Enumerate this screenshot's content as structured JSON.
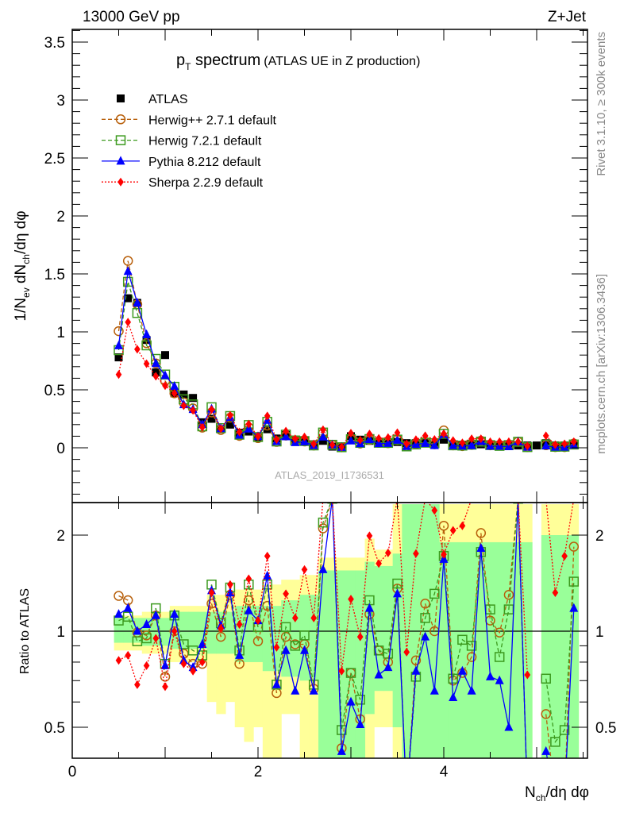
{
  "chart_data": {
    "type": "line",
    "header_left": "13000 GeV pp",
    "header_right": "Z+Jet",
    "title": {
      "p": "p",
      "sub": "T",
      "rest": " spectrum",
      "subtitle": "(ATLAS UE in Z production)"
    },
    "ylabel": {
      "a": "1/N",
      "a_sub": "ev",
      "b": " dN",
      "b_sub": "ch",
      "c": "/dη dφ"
    },
    "ratio_ylabel": "Ratio to ATLAS",
    "xlabel": {
      "a": "N",
      "a_sub": "ch",
      "b": "/dη dφ"
    },
    "side_text_top": "Rivet 3.1.10, ≥ 300k events",
    "side_text_bottom": "mcplots.cern.ch [arXiv:1306.3436]",
    "watermark": "ATLAS_2019_I1736531",
    "xlim": [
      0,
      5.55
    ],
    "ylim": [
      -0.47,
      3.61
    ],
    "ratio_ylim": [
      0.4,
      2.49
    ],
    "ratio_scale": "log",
    "x_ticks": [
      "0",
      "2",
      "4"
    ],
    "y_ticks": [
      "0",
      "0.5",
      "1",
      "1.5",
      "2",
      "2.5",
      "3",
      "3.5"
    ],
    "ratio_ticks": [
      "0.5",
      "1",
      "2"
    ],
    "legend_position": "top-left",
    "x": [
      0.5,
      0.6,
      0.7,
      0.8,
      0.9,
      1.0,
      1.1,
      1.2,
      1.3,
      1.4,
      1.5,
      1.6,
      1.7,
      1.8,
      1.9,
      2.0,
      2.1,
      2.2,
      2.3,
      2.4,
      2.5,
      2.6,
      2.7,
      2.8,
      2.9,
      3.0,
      3.1,
      3.2,
      3.3,
      3.4,
      3.5,
      3.6,
      3.7,
      3.8,
      3.9,
      4.0,
      4.1,
      4.2,
      4.3,
      4.4,
      4.5,
      4.6,
      4.7,
      4.8,
      4.9,
      5.0,
      5.1,
      5.2,
      5.3,
      5.4
    ],
    "data": {
      "name": "ATLAS",
      "color": "#000000",
      "values": [
        0.78,
        1.29,
        1.25,
        0.93,
        0.65,
        0.8,
        0.47,
        0.46,
        0.43,
        0.22,
        0.25,
        0.16,
        0.2,
        0.13,
        0.14,
        0.09,
        0.16,
        0.08,
        0.11,
        0.07,
        0.06,
        0.03,
        0.06,
        0.01,
        0.01,
        0.1,
        0.07,
        0.06,
        0.05,
        0.05,
        0.05,
        0.04,
        0.04,
        0.04,
        0.03,
        0.07,
        0.03,
        0.02,
        0.03,
        0.03,
        0.02,
        0.02,
        0.02,
        0.02,
        0.02,
        0.02,
        0.04,
        0.02,
        0.02,
        0.02
      ]
    },
    "bands": {
      "yellow_color": "#ffff99",
      "green_color": "#99ff99",
      "yellow_lo": [
        0.87,
        0.87,
        0.87,
        0.85,
        0.85,
        0.85,
        0.8,
        0.8,
        0.8,
        0.8,
        0.6,
        0.55,
        0.6,
        0.5,
        0.45,
        0.5,
        0.35,
        0.35,
        0.55,
        0.55,
        0.35,
        0.35,
        0.3,
        0.3,
        0.3,
        0.3,
        0.3,
        0.4,
        0.5,
        0.5,
        0.3,
        0.3,
        0.3,
        0.3,
        0.3,
        0.3,
        0.3,
        0.3,
        0.3,
        0.3,
        0.3,
        0.3,
        0.3,
        0.3,
        0.3,
        null,
        0.3,
        0.3,
        0.3,
        0.3
      ],
      "yellow_hi": [
        1.12,
        1.12,
        1.12,
        1.15,
        1.15,
        1.15,
        1.2,
        1.2,
        1.2,
        1.2,
        1.3,
        1.3,
        1.3,
        1.35,
        1.35,
        1.35,
        1.4,
        1.4,
        1.45,
        1.45,
        1.5,
        1.5,
        1.7,
        1.7,
        1.7,
        1.7,
        1.7,
        1.95,
        1.8,
        1.8,
        2.5,
        2.5,
        2.5,
        2.5,
        2.5,
        2.5,
        2.5,
        2.5,
        2.5,
        2.5,
        2.5,
        2.5,
        2.5,
        2.5,
        2.5,
        null,
        2.5,
        2.5,
        2.5,
        2.5
      ],
      "green_lo": [
        0.92,
        0.92,
        0.92,
        0.9,
        0.9,
        0.9,
        0.88,
        0.88,
        0.88,
        0.88,
        0.85,
        0.85,
        0.85,
        0.8,
        0.8,
        0.8,
        0.75,
        0.75,
        0.72,
        0.72,
        0.7,
        0.7,
        0.3,
        0.3,
        0.3,
        0.3,
        0.3,
        0.55,
        0.65,
        0.65,
        0.5,
        0.3,
        0.3,
        0.3,
        0.3,
        0.3,
        0.3,
        0.3,
        0.3,
        0.3,
        0.3,
        0.3,
        0.3,
        0.3,
        0.3,
        null,
        0.3,
        0.3,
        0.3,
        0.3
      ],
      "green_hi": [
        1.1,
        1.1,
        1.1,
        1.1,
        1.1,
        1.1,
        1.15,
        1.15,
        1.15,
        1.15,
        1.15,
        1.15,
        1.15,
        1.2,
        1.2,
        1.2,
        1.2,
        1.2,
        1.25,
        1.25,
        1.3,
        1.3,
        1.55,
        1.55,
        1.55,
        1.55,
        1.55,
        1.65,
        1.6,
        1.6,
        1.75,
        2.5,
        2.5,
        2.5,
        2.5,
        1.9,
        1.9,
        1.9,
        1.9,
        1.9,
        1.9,
        1.9,
        1.9,
        1.9,
        1.9,
        null,
        2.0,
        2.0,
        2.0,
        2.0
      ]
    },
    "series": [
      {
        "name": "Herwig++ 2.7.1 default",
        "key": "herwigpp",
        "color": "#b8600c",
        "marker": "open-circle",
        "line": "dashed",
        "ratio": [
          1.29,
          1.25,
          0.99,
          0.97,
          1.12,
          0.72,
          1.0,
          0.85,
          0.79,
          0.79,
          1.22,
          0.96,
          1.3,
          0.79,
          1.25,
          0.93,
          1.2,
          0.64,
          0.96,
          0.91,
          0.91,
          0.66,
          2.1,
          2.6,
          0.43,
          0.74,
          0.53,
          1.13,
          0.87,
          0.8,
          1.36,
          0.3,
          0.81,
          1.22,
          1.0,
          2.14,
          0.7,
          0.74,
          0.83,
          2.03,
          1.08,
          0.99,
          1.3,
          2.6,
          0.3,
          null,
          0.55,
          0.3,
          0.3,
          1.84
        ]
      },
      {
        "name": "Herwig 7.2.1 default",
        "key": "herwig7",
        "color": "#3c9a1e",
        "marker": "open-square",
        "line": "dashed",
        "ratio": [
          1.08,
          1.11,
          0.93,
          0.95,
          1.18,
          0.79,
          1.12,
          0.91,
          0.87,
          0.84,
          1.4,
          1.06,
          1.37,
          0.87,
          1.4,
          1.03,
          1.4,
          0.68,
          1.03,
          0.9,
          0.97,
          0.68,
          2.19,
          2.6,
          0.49,
          0.74,
          0.61,
          1.25,
          0.87,
          0.85,
          1.41,
          0.3,
          0.72,
          1.1,
          1.31,
          1.72,
          0.71,
          0.94,
          0.9,
          1.77,
          1.17,
          0.83,
          1.17,
          2.6,
          0.3,
          null,
          0.71,
          0.45,
          0.49,
          1.43
        ]
      },
      {
        "name": "Pythia 8.212 default",
        "key": "pythia",
        "color": "#0000ff",
        "marker": "triangle",
        "line": "solid",
        "ratio": [
          1.13,
          1.18,
          1.0,
          1.05,
          1.12,
          0.78,
          1.13,
          0.81,
          0.77,
          0.91,
          1.34,
          1.04,
          1.32,
          0.84,
          1.16,
          1.08,
          1.49,
          0.68,
          0.87,
          0.65,
          0.87,
          0.65,
          1.56,
          2.6,
          0.42,
          0.6,
          0.51,
          1.18,
          0.73,
          0.77,
          1.31,
          0.3,
          0.75,
          0.96,
          0.65,
          1.68,
          0.62,
          0.75,
          0.65,
          1.82,
          0.72,
          0.7,
          0.5,
          2.6,
          0.3,
          null,
          0.42,
          0.3,
          0.3,
          1.18
        ]
      },
      {
        "name": "Sherpa 2.2.9 default",
        "key": "sherpa",
        "color": "#ff0000",
        "marker": "diamond",
        "line": "dotted",
        "ratio": [
          0.81,
          0.84,
          0.68,
          0.78,
          0.95,
          0.67,
          1.0,
          0.79,
          0.75,
          0.8,
          1.32,
          1.02,
          1.4,
          1.05,
          1.46,
          1.08,
          1.72,
          0.89,
          1.31,
          1.1,
          1.56,
          1.1,
          2.6,
          2.6,
          0.75,
          1.26,
          0.96,
          1.99,
          1.63,
          1.76,
          2.6,
          0.86,
          1.75,
          2.6,
          2.39,
          1.74,
          2.07,
          2.14,
          2.6,
          2.6,
          2.6,
          2.6,
          2.6,
          2.6,
          0.73,
          null,
          2.6,
          1.32,
          1.72,
          2.6
        ]
      }
    ]
  }
}
